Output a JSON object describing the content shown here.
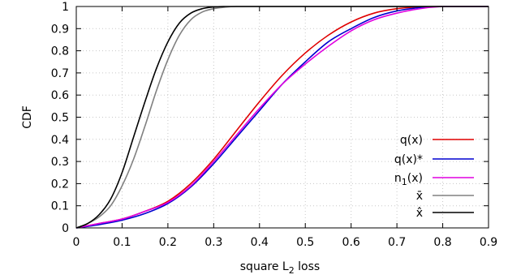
{
  "chart_data": {
    "type": "line",
    "title": "",
    "xlabel": "square L₂ loss",
    "ylabel": "CDF",
    "xlim": [
      0,
      0.9
    ],
    "ylim": [
      0,
      1
    ],
    "grid": true,
    "legend_position": "bottom-right",
    "x_ticks": [
      "0",
      "0.1",
      "0.2",
      "0.3",
      "0.4",
      "0.5",
      "0.6",
      "0.7",
      "0.8",
      "0.9"
    ],
    "y_ticks": [
      "0",
      "0.1",
      "0.2",
      "0.3",
      "0.4",
      "0.5",
      "0.6",
      "0.7",
      "0.8",
      "0.9",
      "1"
    ],
    "series": [
      {
        "name": "q(x)",
        "color": "#e00000",
        "x": [
          0,
          0.05,
          0.1,
          0.15,
          0.2,
          0.25,
          0.3,
          0.35,
          0.4,
          0.45,
          0.5,
          0.55,
          0.6,
          0.65,
          0.7,
          0.75,
          0.8,
          0.85,
          0.9
        ],
        "y": [
          0,
          0.02,
          0.04,
          0.075,
          0.12,
          0.2,
          0.31,
          0.44,
          0.57,
          0.69,
          0.79,
          0.87,
          0.93,
          0.97,
          0.99,
          0.998,
          1,
          1,
          1
        ]
      },
      {
        "name": "q(x)*",
        "color": "#0000d0",
        "x": [
          0,
          0.05,
          0.1,
          0.15,
          0.2,
          0.25,
          0.3,
          0.35,
          0.4,
          0.45,
          0.5,
          0.55,
          0.6,
          0.65,
          0.7,
          0.75,
          0.8,
          0.85,
          0.9
        ],
        "y": [
          0,
          0.015,
          0.035,
          0.065,
          0.11,
          0.185,
          0.29,
          0.41,
          0.53,
          0.65,
          0.75,
          0.84,
          0.9,
          0.95,
          0.98,
          0.995,
          1,
          1,
          1
        ]
      },
      {
        "name": "n1(x)",
        "color": "#e000e0",
        "x": [
          0,
          0.05,
          0.1,
          0.15,
          0.2,
          0.25,
          0.3,
          0.35,
          0.4,
          0.45,
          0.5,
          0.55,
          0.6,
          0.65,
          0.7,
          0.75,
          0.8,
          0.85,
          0.9
        ],
        "y": [
          0,
          0.02,
          0.04,
          0.075,
          0.115,
          0.19,
          0.3,
          0.42,
          0.54,
          0.65,
          0.74,
          0.82,
          0.89,
          0.94,
          0.97,
          0.99,
          1,
          1,
          1
        ]
      },
      {
        "name": "x̄",
        "color": "#808080",
        "x": [
          0,
          0.025,
          0.05,
          0.075,
          0.1,
          0.125,
          0.15,
          0.175,
          0.2,
          0.225,
          0.25,
          0.275,
          0.3,
          0.325,
          0.35,
          0.4,
          0.45,
          0.9
        ],
        "y": [
          0,
          0.02,
          0.05,
          0.1,
          0.19,
          0.31,
          0.46,
          0.62,
          0.76,
          0.87,
          0.94,
          0.975,
          0.99,
          0.997,
          1,
          1,
          1,
          1
        ]
      },
      {
        "name": "x̂",
        "color": "#000000",
        "x": [
          0,
          0.025,
          0.05,
          0.075,
          0.1,
          0.125,
          0.15,
          0.175,
          0.2,
          0.225,
          0.25,
          0.275,
          0.3,
          0.325,
          0.35,
          0.4,
          0.45,
          0.9
        ],
        "y": [
          0,
          0.02,
          0.06,
          0.13,
          0.25,
          0.41,
          0.57,
          0.72,
          0.84,
          0.925,
          0.97,
          0.99,
          0.998,
          1,
          1,
          1,
          1,
          1
        ]
      }
    ]
  }
}
